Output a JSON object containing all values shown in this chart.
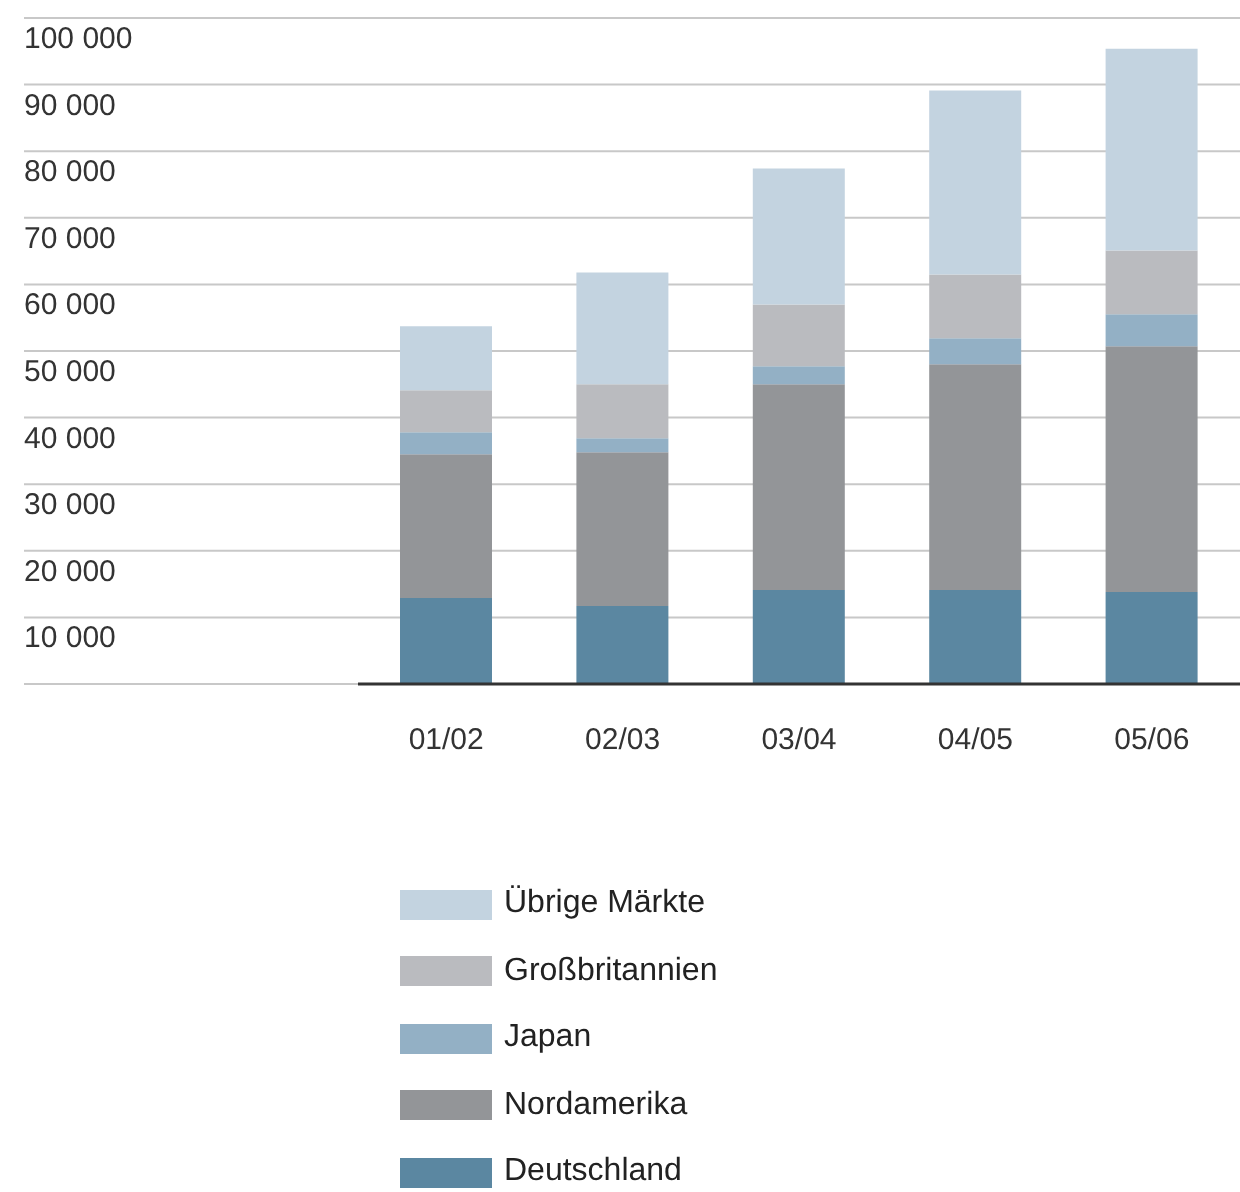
{
  "chart_data": {
    "type": "bar",
    "stacked": true,
    "categories": [
      "01/02",
      "02/03",
      "03/04",
      "04/05",
      "05/06"
    ],
    "series": [
      {
        "name": "Deutschland",
        "color": "#5b87a1",
        "values": [
          12900,
          11700,
          14100,
          14100,
          13800
        ]
      },
      {
        "name": "Nordamerika",
        "color": "#939598",
        "values": [
          21600,
          23100,
          30900,
          33900,
          36900
        ]
      },
      {
        "name": "Japan",
        "color": "#93b0c5",
        "values": [
          3300,
          2100,
          2700,
          3900,
          4800
        ]
      },
      {
        "name": "Großbritannien",
        "color": "#babbbf",
        "values": [
          6300,
          8100,
          9300,
          9600,
          9600
        ]
      },
      {
        "name": "Übrige Märkte",
        "color": "#c3d3e0",
        "values": [
          9600,
          16800,
          20400,
          27600,
          30300
        ]
      }
    ],
    "ylim": [
      0,
      100000
    ],
    "yticks": [
      {
        "value": 0,
        "label": null
      },
      {
        "value": 10000,
        "label": "10 000"
      },
      {
        "value": 20000,
        "label": "20 000"
      },
      {
        "value": 30000,
        "label": "30 000"
      },
      {
        "value": 40000,
        "label": "40 000"
      },
      {
        "value": 50000,
        "label": "50 000"
      },
      {
        "value": 60000,
        "label": "60 000"
      },
      {
        "value": 70000,
        "label": "70 000"
      },
      {
        "value": 80000,
        "label": "80 000"
      },
      {
        "value": 90000,
        "label": "90 000"
      },
      {
        "value": 100000,
        "label": "100 000"
      }
    ],
    "grid": "y",
    "legend": "bottom"
  }
}
